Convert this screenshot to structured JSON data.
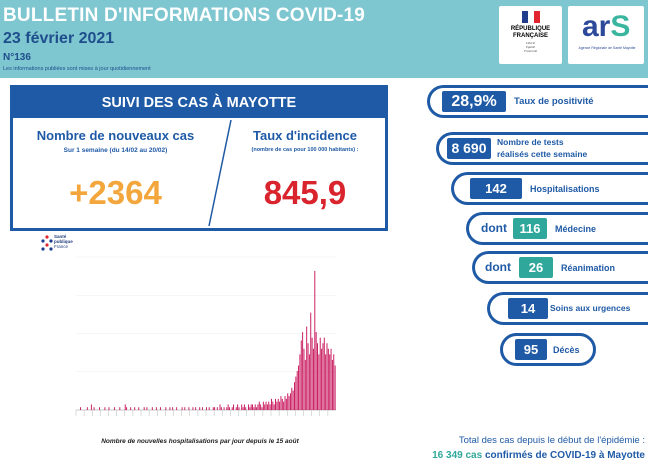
{
  "header": {
    "title": "BULLETIN D'INFORMATIONS COVID-19",
    "date": "23 février 2021",
    "number": "N°136",
    "note": "Les informations publiées sont mises à jour quotidiennement",
    "rf_name_lines": [
      "RÉPUBLIQUE",
      "FRANÇAISE"
    ],
    "rf_motto": [
      "Liberté",
      "Égalité",
      "Fraternité"
    ],
    "ars_logo_left": "ar",
    "ars_logo_right": "S",
    "ars_sub": "Agence Régionale de Santé Mayotte",
    "colors": {
      "band": "#7ec6d0",
      "navy": "#1f5aa6",
      "teal": "#2fa89b"
    }
  },
  "suivi": {
    "title": "SUIVI DES CAS À MAYOTTE",
    "new_cases": {
      "label": "Nombre de nouveaux cas",
      "sub": "Sur 1 semaine (du 14/02 au 20/02)",
      "value": "+2364",
      "color": "#f3a63b"
    },
    "incidence": {
      "label": "Taux d'incidence",
      "sub": "(nombre de cas pour 100 000 habitants) :",
      "value": "845,9",
      "color": "#d9232d"
    }
  },
  "spf_logo": {
    "lines": [
      "Santé",
      "publique",
      "France"
    ]
  },
  "chart_caption": "Nombre de nouvelles hospitalisations par jour depuis le 15 août",
  "chart_data": {
    "type": "bar",
    "title": "",
    "xlabel": "",
    "ylabel": "",
    "color": "#c8175d",
    "values": [
      0,
      0,
      0,
      1,
      0,
      0,
      0,
      0,
      1,
      0,
      0,
      2,
      0,
      1,
      0,
      0,
      0,
      1,
      0,
      0,
      0,
      1,
      0,
      0,
      1,
      0,
      0,
      0,
      1,
      0,
      0,
      0,
      1,
      0,
      0,
      0,
      2,
      1,
      0,
      0,
      1,
      0,
      0,
      1,
      0,
      0,
      1,
      0,
      0,
      0,
      1,
      0,
      1,
      0,
      0,
      0,
      1,
      0,
      0,
      1,
      0,
      0,
      1,
      0,
      0,
      0,
      1,
      0,
      0,
      1,
      0,
      1,
      0,
      0,
      1,
      0,
      0,
      0,
      1,
      0,
      1,
      0,
      0,
      1,
      0,
      0,
      1,
      0,
      1,
      0,
      0,
      1,
      0,
      1,
      0,
      0,
      1,
      0,
      1,
      0,
      0,
      1,
      1,
      0,
      1,
      0,
      2,
      1,
      0,
      1,
      0,
      1,
      2,
      1,
      0,
      1,
      2,
      0,
      1,
      2,
      1,
      0,
      2,
      1,
      2,
      1,
      0,
      2,
      1,
      2,
      2,
      1,
      2,
      1,
      2,
      3,
      2,
      1,
      3,
      2,
      3,
      2,
      3,
      2,
      4,
      3,
      2,
      4,
      3,
      4,
      3,
      5,
      4,
      3,
      5,
      4,
      6,
      5,
      6,
      8,
      7,
      10,
      12,
      14,
      16,
      20,
      25,
      28,
      22,
      18,
      30,
      24,
      20,
      35,
      26,
      22,
      50,
      28,
      24,
      20,
      26,
      22,
      24,
      26,
      20,
      24,
      22,
      20,
      22,
      18,
      20,
      16
    ]
  },
  "stats": [
    {
      "prefix": "",
      "value": "28,9%",
      "label_lines": [
        "Taux de positivité"
      ],
      "pill": "navy"
    },
    {
      "prefix": "",
      "value": "8 690",
      "label_lines": [
        "Nombre de tests",
        "réalisés cette semaine"
      ],
      "pill": "navy"
    },
    {
      "prefix": "",
      "value": "142",
      "label_lines": [
        "Hospitalisations"
      ],
      "pill": "navy"
    },
    {
      "prefix": "dont",
      "value": "116",
      "label_lines": [
        "Médecine"
      ],
      "pill": "teal"
    },
    {
      "prefix": "dont",
      "value": "26",
      "label_lines": [
        "Réanimation"
      ],
      "pill": "teal"
    },
    {
      "prefix": "",
      "value": "14",
      "label_lines": [
        "Soins aux urgences"
      ],
      "pill": "navy"
    },
    {
      "prefix": "",
      "value": "95",
      "label_lines": [
        "Décès"
      ],
      "pill": "navy"
    }
  ],
  "total": {
    "line1": "Total des cas depuis le début de l'épidémie :",
    "count": "16 349 cas",
    "rest": " confirmés de COVID-19 à Mayotte"
  }
}
